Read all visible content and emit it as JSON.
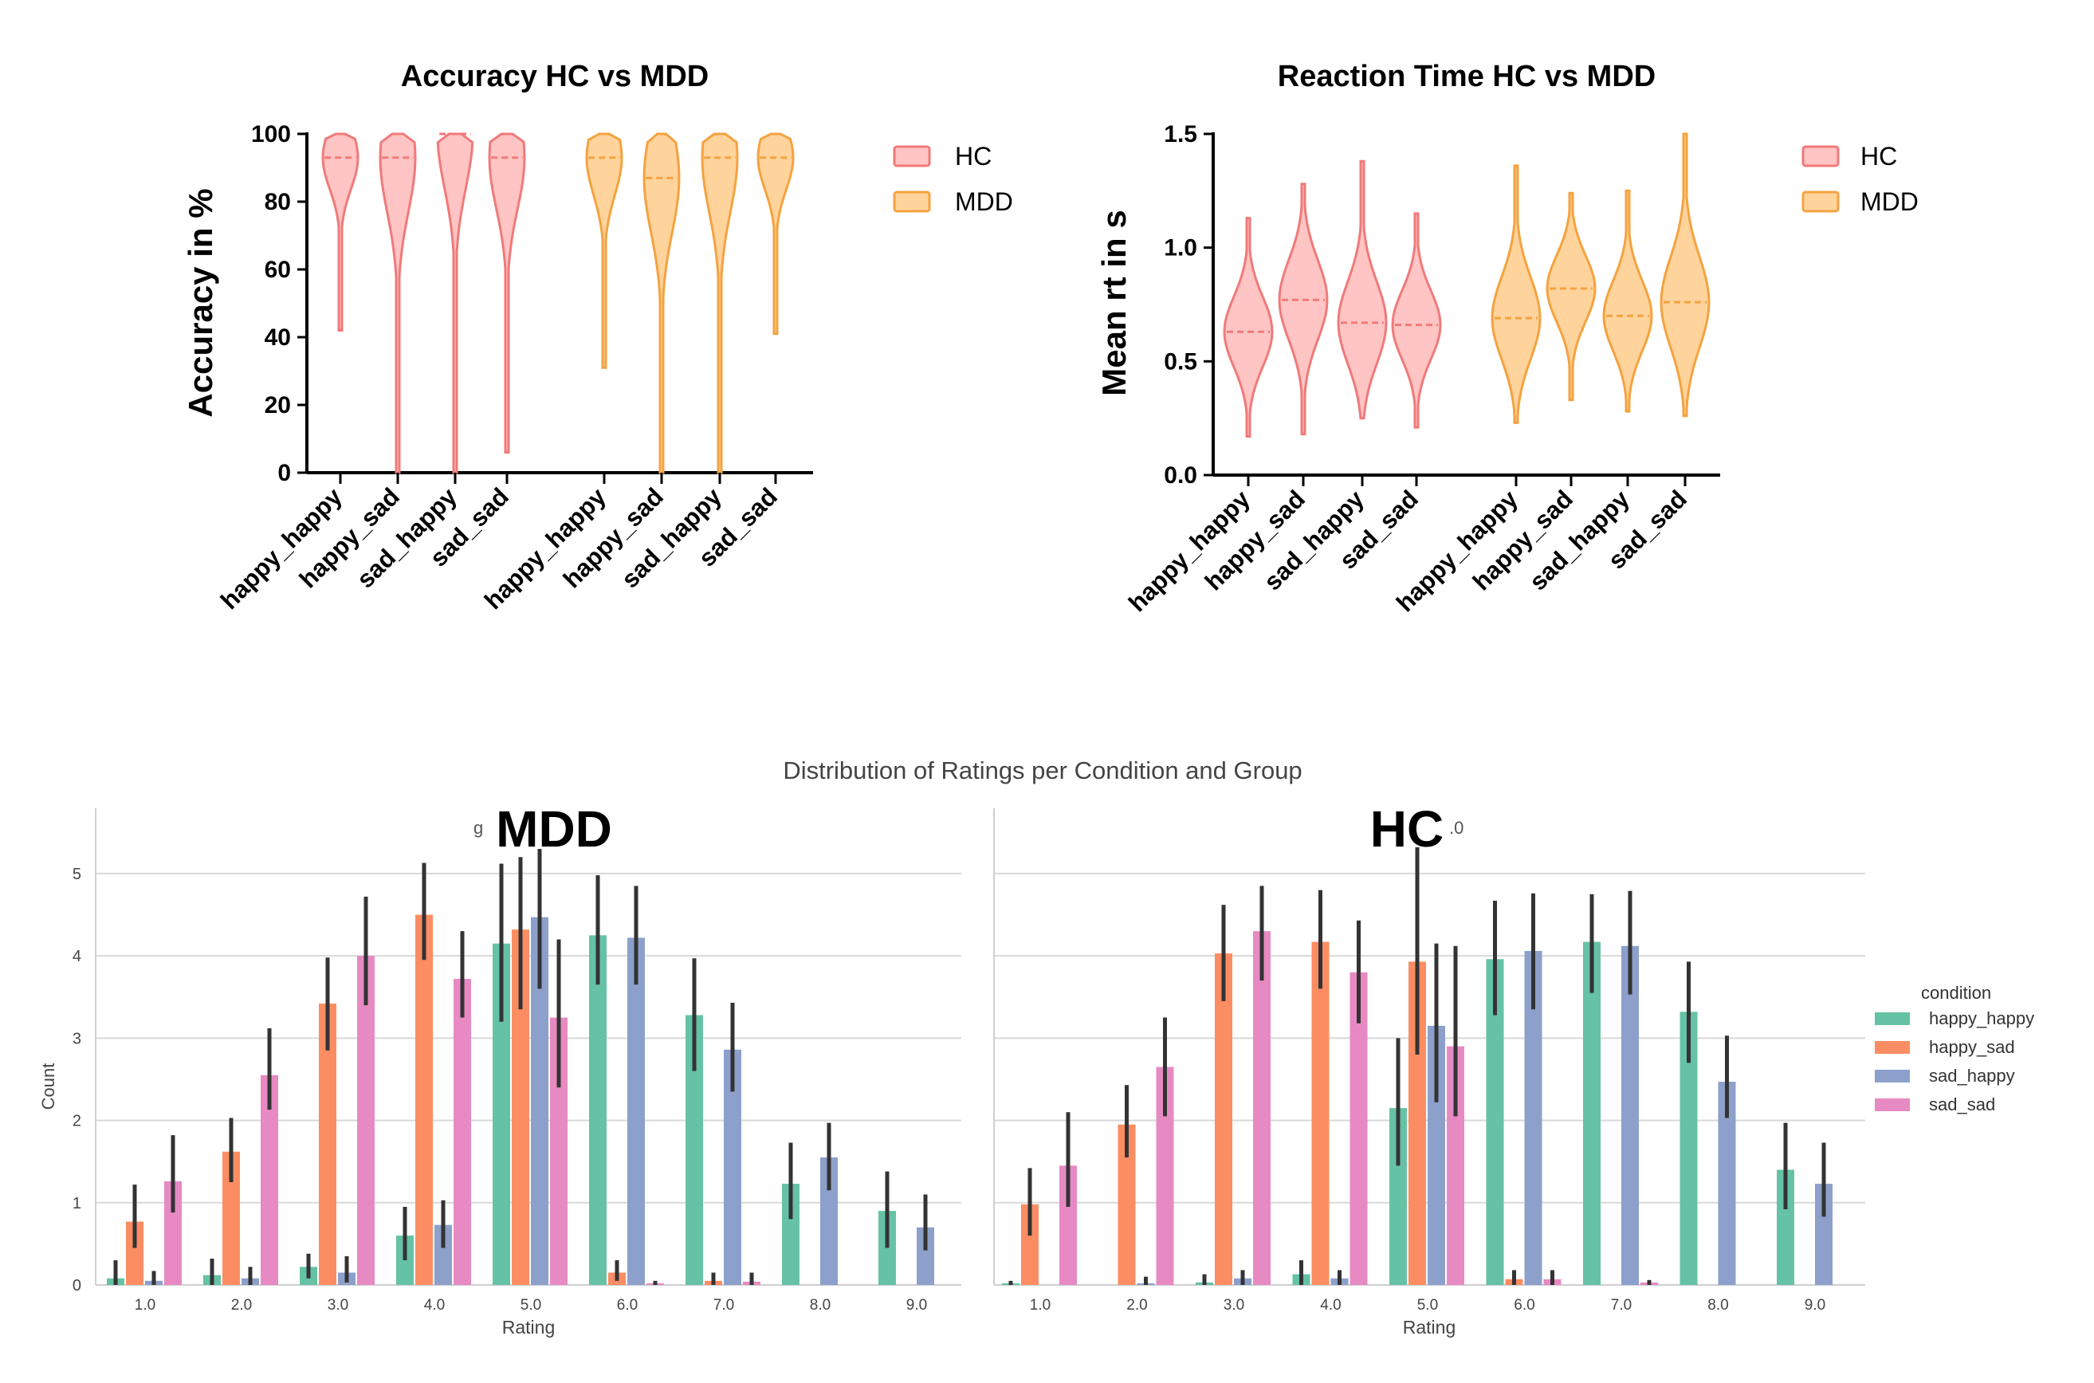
{
  "figure": {
    "violin_legend": {
      "hc": "HC",
      "mdd": "MDD"
    },
    "distribution_title": "Distribution of Ratings per Condition and Group",
    "overlay_labels": {
      "mdd": "MDD",
      "hc": "HC",
      "stray_left": "g",
      "stray_right": ".0"
    },
    "bar_legend": {
      "title": "condition",
      "items": [
        "happy_happy",
        "happy_sad",
        "sad_happy",
        "sad_sad"
      ]
    }
  },
  "colors": {
    "hc_fill": "#ffc4c4",
    "hc_line": "#f07a7a",
    "mdd_fill": "#ffd39c",
    "mdd_line": "#f4a340",
    "happy_happy": "#66c2a5",
    "happy_sad": "#fc8d62",
    "sad_happy": "#8da0cb",
    "sad_sad": "#e78ac3",
    "errbar": "#333333",
    "grid": "#d9d9d9"
  },
  "chart_data": [
    {
      "type": "violin",
      "title": "Accuracy HC vs MDD",
      "ylabel": "Accuracy in %",
      "ylim": [
        0,
        100
      ],
      "yticks": [
        0,
        20,
        40,
        60,
        80,
        100
      ],
      "categories": [
        "happy_happy",
        "happy_sad",
        "sad_happy",
        "sad_sad"
      ],
      "series": [
        {
          "name": "HC",
          "medians": [
            93,
            93,
            100,
            93
          ],
          "mins": [
            42,
            0,
            0,
            6
          ],
          "maxs": [
            100,
            100,
            100,
            100
          ]
        },
        {
          "name": "MDD",
          "medians": [
            93,
            87,
            93,
            93
          ],
          "mins": [
            31,
            0,
            0,
            41
          ],
          "maxs": [
            100,
            100,
            100,
            100
          ]
        }
      ]
    },
    {
      "type": "violin",
      "title": "Reaction Time HC vs MDD",
      "ylabel": "Mean  rt in s",
      "ylim": [
        0.0,
        1.5
      ],
      "yticks": [
        "0.0",
        "0.5",
        "1.0",
        "1.5"
      ],
      "categories": [
        "happy_happy",
        "happy_sad",
        "sad_happy",
        "sad_sad"
      ],
      "series": [
        {
          "name": "HC",
          "medians": [
            0.63,
            0.77,
            0.67,
            0.66
          ],
          "mins": [
            0.17,
            0.18,
            0.25,
            0.21
          ],
          "maxs": [
            1.13,
            1.28,
            1.38,
            1.15
          ]
        },
        {
          "name": "MDD",
          "medians": [
            0.69,
            0.82,
            0.7,
            0.76
          ],
          "mins": [
            0.23,
            0.33,
            0.28,
            0.26
          ],
          "maxs": [
            1.36,
            1.24,
            1.25,
            1.5
          ]
        }
      ]
    },
    {
      "type": "bar",
      "group": "MDD",
      "xlabel": "Rating",
      "ylabel": "Count",
      "ylim": [
        0,
        5.6
      ],
      "yticks": [
        0,
        1,
        2,
        3,
        4,
        5
      ],
      "categories": [
        "1.0",
        "2.0",
        "3.0",
        "4.0",
        "5.0",
        "6.0",
        "7.0",
        "8.0",
        "9.0"
      ],
      "series": [
        {
          "name": "happy_happy",
          "values": [
            0.08,
            0.12,
            0.22,
            0.6,
            4.15,
            4.25,
            3.28,
            1.23,
            0.9
          ],
          "err_low": [
            0.0,
            0.0,
            0.08,
            0.3,
            3.2,
            3.65,
            2.6,
            0.8,
            0.45
          ],
          "err_high": [
            0.3,
            0.32,
            0.38,
            0.95,
            5.12,
            4.98,
            3.97,
            1.73,
            1.38
          ]
        },
        {
          "name": "happy_sad",
          "values": [
            0.77,
            1.62,
            3.42,
            4.5,
            4.32,
            0.15,
            0.05,
            0.0,
            0.0
          ],
          "err_low": [
            0.45,
            1.25,
            2.85,
            3.95,
            3.35,
            0.05,
            0.0,
            0.0,
            0.0
          ],
          "err_high": [
            1.22,
            2.03,
            3.98,
            5.13,
            5.2,
            0.3,
            0.15,
            0.0,
            0.0
          ]
        },
        {
          "name": "sad_happy",
          "values": [
            0.05,
            0.08,
            0.15,
            0.73,
            4.47,
            4.22,
            2.86,
            1.55,
            0.7
          ],
          "err_low": [
            0.0,
            0.0,
            0.03,
            0.45,
            3.6,
            3.65,
            2.35,
            1.15,
            0.42
          ],
          "err_high": [
            0.17,
            0.22,
            0.35,
            1.03,
            5.3,
            4.85,
            3.43,
            1.97,
            1.1
          ]
        },
        {
          "name": "sad_sad",
          "values": [
            1.26,
            2.55,
            4.0,
            3.72,
            3.25,
            0.02,
            0.04,
            0.0,
            0.0
          ],
          "err_low": [
            0.88,
            2.13,
            3.4,
            3.25,
            2.4,
            0.0,
            0.0,
            0.0,
            0.0
          ],
          "err_high": [
            1.82,
            3.12,
            4.72,
            4.3,
            4.2,
            0.05,
            0.15,
            0.0,
            0.0
          ]
        }
      ]
    },
    {
      "type": "bar",
      "group": "HC",
      "xlabel": "Rating",
      "ylabel": "",
      "ylim": [
        0,
        5.6
      ],
      "yticks": [
        0,
        1,
        2,
        3,
        4,
        5
      ],
      "categories": [
        "1.0",
        "2.0",
        "3.0",
        "4.0",
        "5.0",
        "6.0",
        "7.0",
        "8.0",
        "9.0"
      ],
      "series": [
        {
          "name": "happy_happy",
          "values": [
            0.02,
            0.0,
            0.03,
            0.13,
            2.15,
            3.96,
            4.17,
            3.32,
            1.4
          ],
          "err_low": [
            0.0,
            0.0,
            0.0,
            0.0,
            1.45,
            3.28,
            3.55,
            2.7,
            0.92
          ],
          "err_high": [
            0.05,
            0.0,
            0.13,
            0.3,
            3.0,
            4.67,
            4.75,
            3.93,
            1.97
          ]
        },
        {
          "name": "happy_sad",
          "values": [
            0.98,
            1.95,
            4.03,
            4.17,
            3.93,
            0.07,
            0.0,
            0.0,
            0.0
          ],
          "err_low": [
            0.6,
            1.55,
            3.45,
            3.6,
            2.8,
            0.0,
            0.0,
            0.0,
            0.0
          ],
          "err_high": [
            1.42,
            2.43,
            4.62,
            4.8,
            5.32,
            0.18,
            0.0,
            0.0,
            0.0
          ]
        },
        {
          "name": "sad_happy",
          "values": [
            0.0,
            0.02,
            0.08,
            0.08,
            3.15,
            4.06,
            4.12,
            2.47,
            1.23
          ],
          "err_low": [
            0.0,
            0.0,
            0.0,
            0.0,
            2.22,
            3.35,
            3.53,
            2.03,
            0.83
          ],
          "err_high": [
            0.0,
            0.1,
            0.18,
            0.18,
            4.15,
            4.76,
            4.79,
            3.03,
            1.73
          ]
        },
        {
          "name": "sad_sad",
          "values": [
            1.45,
            2.65,
            4.3,
            3.8,
            2.9,
            0.07,
            0.03,
            0.0,
            0.0
          ],
          "err_low": [
            0.95,
            2.05,
            3.7,
            3.18,
            2.05,
            0.0,
            0.0,
            0.0,
            0.0
          ],
          "err_high": [
            2.1,
            3.25,
            4.85,
            4.43,
            4.12,
            0.18,
            0.06,
            0.0,
            0.0
          ]
        }
      ]
    }
  ]
}
